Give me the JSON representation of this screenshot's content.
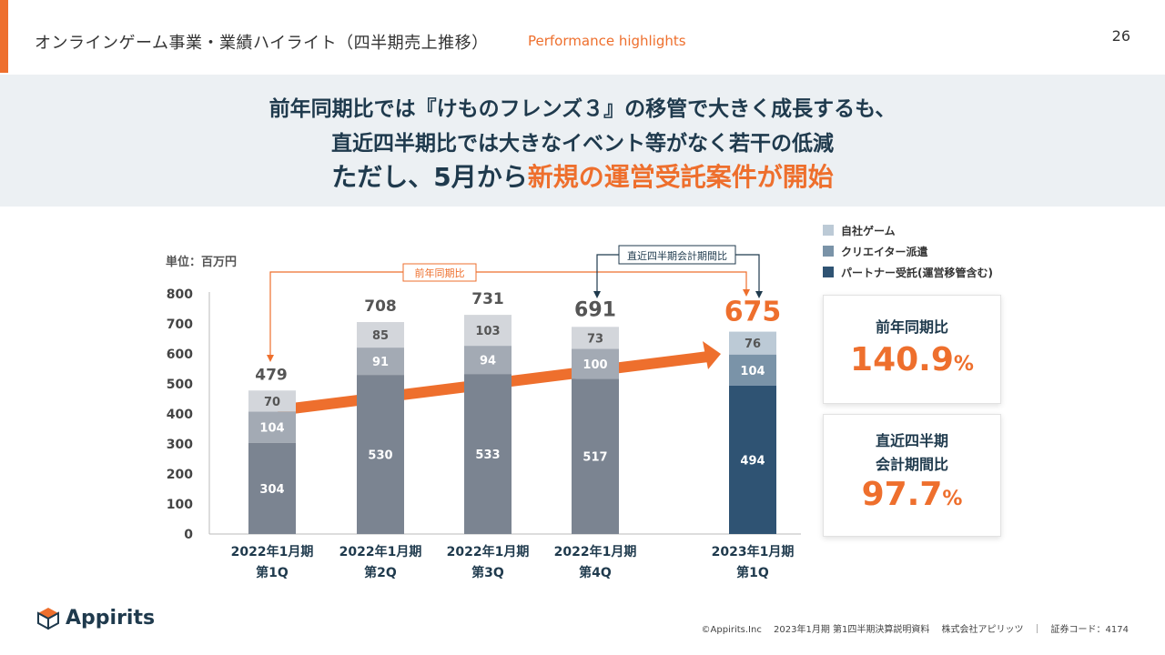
{
  "header": {
    "title": "オンラインゲーム事業・業績ハイライト（四半期売上推移）",
    "subtitle": "Performance highlights",
    "page_number": "26"
  },
  "headline": {
    "line1": "前年同期比では『けものフレンズ３』の移管で大きく成長するも、",
    "line2": "直近四半期比では大きなイベント等がなく若干の低減",
    "line3_prefix": "ただし、5月から",
    "line3_highlight": "新規の運営受託案件が開始"
  },
  "chart_data": {
    "type": "bar",
    "stacked": true,
    "unit_label": "単位：百万円",
    "categories": [
      [
        "2022年1月期",
        "第1Q"
      ],
      [
        "2022年1月期",
        "第2Q"
      ],
      [
        "2022年1月期",
        "第3Q"
      ],
      [
        "2022年1月期",
        "第4Q"
      ],
      [
        "2023年1月期",
        "第1Q"
      ]
    ],
    "totals": [
      479,
      708,
      731,
      691,
      675
    ],
    "series": [
      {
        "name": "パートナー受託(運営移管含む)",
        "values": [
          304,
          530,
          533,
          517,
          494
        ],
        "colors": [
          "#7b8491",
          "#7b8491",
          "#7b8491",
          "#7b8491",
          "#2f5373"
        ]
      },
      {
        "name": "クリエイター派遣",
        "values": [
          104,
          91,
          94,
          100,
          104
        ],
        "colors": [
          "#a3aab4",
          "#a3aab4",
          "#a3aab4",
          "#a3aab4",
          "#7a93a8"
        ]
      },
      {
        "name": "自社ゲーム",
        "values": [
          70,
          85,
          103,
          73,
          76
        ],
        "colors": [
          "#d3d6db",
          "#d3d6db",
          "#d3d6db",
          "#d3d6db",
          "#bccad6"
        ]
      }
    ],
    "legend": [
      {
        "name": "自社ゲーム",
        "color": "#bccad6"
      },
      {
        "name": "クリエイター派遣",
        "color": "#7a93a8"
      },
      {
        "name": "パートナー受託(運営移管含む)",
        "color": "#2f5373"
      }
    ],
    "y_ticks": [
      0,
      100,
      200,
      300,
      400,
      500,
      600,
      700,
      800
    ],
    "ylim": [
      0,
      800
    ],
    "grid": false,
    "annotations": {
      "yoy_label": "前年同期比",
      "qoq_label": "直近四半期会計期間比"
    },
    "highlight_total_color": "#ee6f2d"
  },
  "kpis": {
    "yoy": {
      "label": "前年同期比",
      "value": "140.9",
      "unit": "%"
    },
    "qoq": {
      "label_line1": "直近四半期",
      "label_line2": "会計期間比",
      "value": "97.7",
      "unit": "%"
    }
  },
  "footer": {
    "logo_text": "Appirits",
    "copyright": "©Appirits.Inc　 2023年1月期 第1四半期決算説明資料　 株式会社アピリッツ　｜　証券コード：4174"
  }
}
